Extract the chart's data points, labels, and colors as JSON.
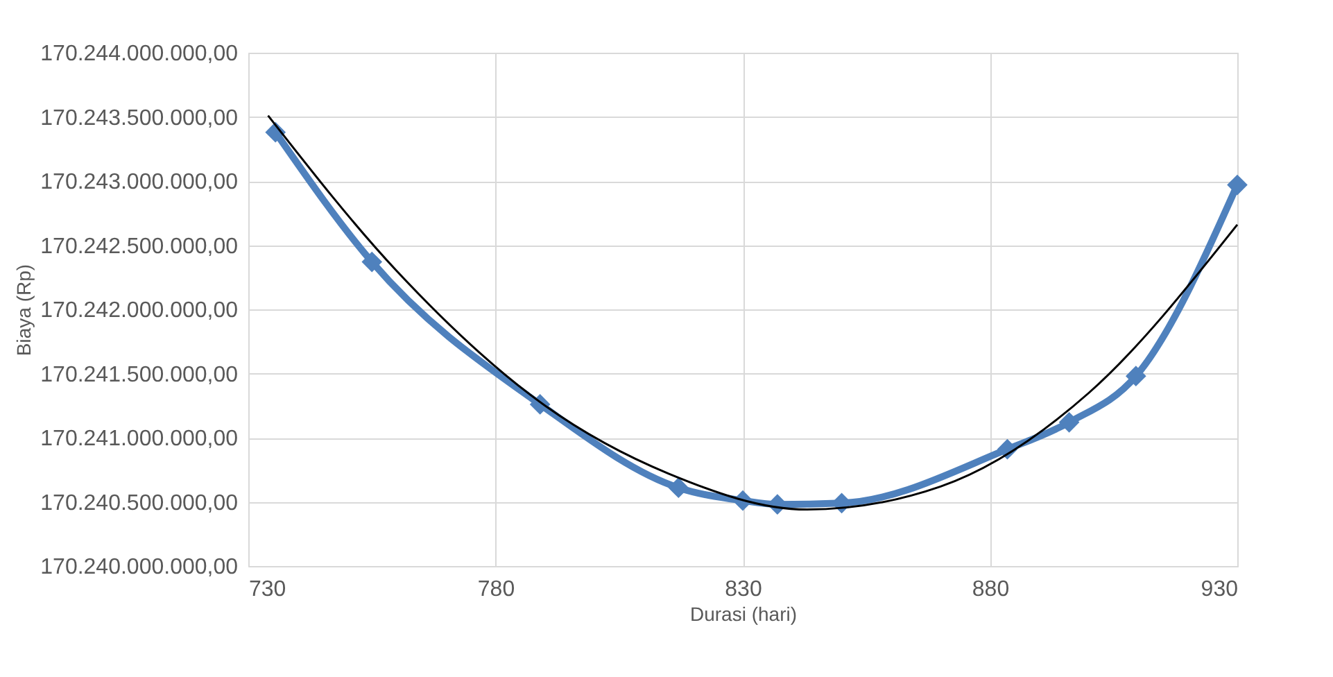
{
  "chart_data": {
    "type": "line",
    "xlabel": "Durasi (hari)",
    "ylabel": "Biaya (Rp)",
    "xlim": [
      730,
      930
    ],
    "xticks": [
      730,
      780,
      830,
      880,
      930
    ],
    "ylim": [
      170240000000,
      170244000000
    ],
    "yticks": [
      {
        "value": 170240000000,
        "label": "170.240.000.000,00"
      },
      {
        "value": 170240500000,
        "label": "170.240.500.000,00"
      },
      {
        "value": 170241000000,
        "label": "170.241.000.000,00"
      },
      {
        "value": 170241500000,
        "label": "170.241.500.000,00"
      },
      {
        "value": 170242000000,
        "label": "170.242.000.000,00"
      },
      {
        "value": 170242500000,
        "label": "170.242.500.000,00"
      },
      {
        "value": 170243000000,
        "label": "170.243.000.000,00"
      },
      {
        "value": 170243500000,
        "label": "170.243.500.000,00"
      },
      {
        "value": 170244000000,
        "label": "170.244.000.000,00"
      }
    ],
    "grid": true,
    "series": [
      {
        "color": "#4f81bd",
        "marker": "diamond",
        "line_style": "solid",
        "x": [
          735.5,
          755,
          789,
          817,
          830,
          837,
          850,
          883.5,
          896,
          909.5,
          930
        ],
        "values": [
          170243380000,
          170242370000,
          170241260000,
          170240610000,
          170240510000,
          170240480000,
          170240490000,
          170240910000,
          170241120000,
          170241480000,
          170242970000
        ]
      },
      {
        "color": "#000000",
        "marker": "none",
        "line_style": "solid",
        "x": [
          734,
          760,
          790,
          815,
          843,
          870,
          900,
          930
        ],
        "values": [
          170243510000,
          170242300000,
          170241250000,
          170240720000,
          170240440000,
          170240620000,
          170241350000,
          170242660000
        ]
      }
    ]
  }
}
